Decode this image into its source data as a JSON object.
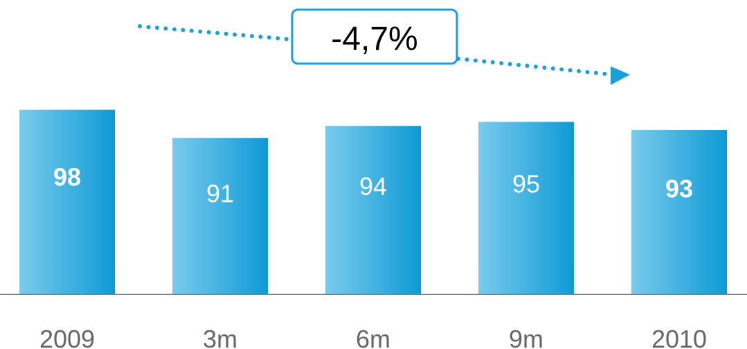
{
  "chart_data": {
    "type": "bar",
    "categories": [
      "2009",
      "3m",
      "6m",
      "9m",
      "2010"
    ],
    "values": [
      98,
      91,
      94,
      95,
      93
    ],
    "value_labels": [
      "98",
      "91",
      "94",
      "95",
      "93"
    ],
    "bold_labels": [
      true,
      false,
      false,
      false,
      true
    ],
    "title": "",
    "xlabel": "",
    "ylabel": "",
    "ylim": [
      52.4,
      100
    ],
    "grid": false,
    "legend": "none",
    "annotation": "-4,7%"
  },
  "colors": {
    "bar_light": "#7acbec",
    "bar_dark": "#0e9ad6",
    "trend": "#1a9fd8",
    "axis": "#808080",
    "tick_text": "#666666"
  }
}
